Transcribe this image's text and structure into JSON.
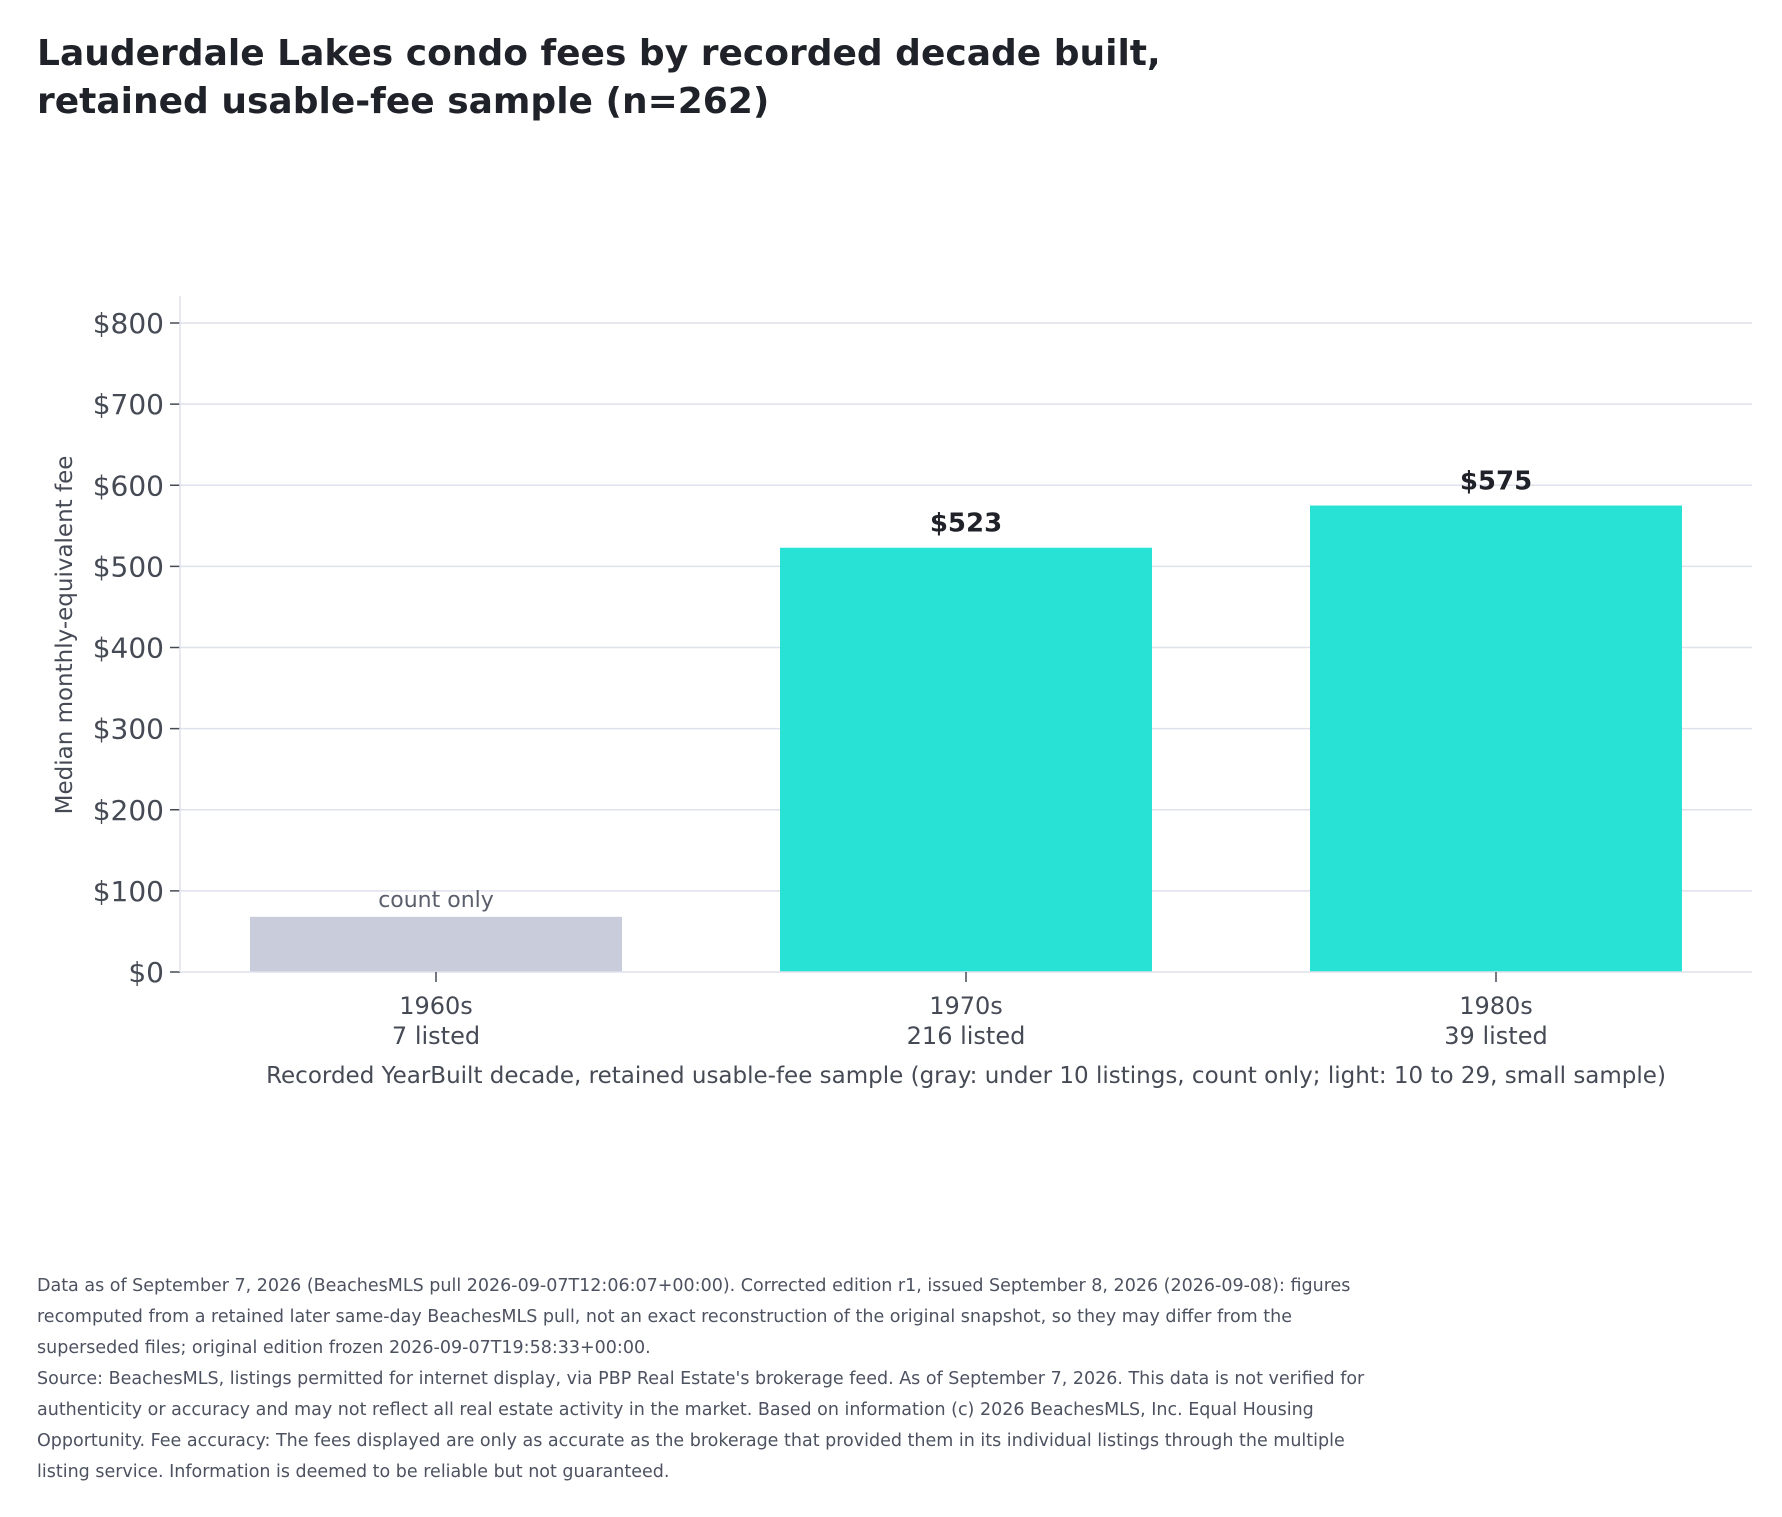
{
  "chart_data": {
    "type": "bar",
    "title": "Lauderdale Lakes condo fees by recorded decade built, retained usable-fee sample (n=262)",
    "ylabel": "Median monthly-equivalent fee",
    "xlabel": "Recorded YearBuilt decade, retained usable-fee sample (gray: under 10 listings, count only; light: 10 to 29, small sample)",
    "ylim": [
      0,
      800
    ],
    "yticks": [
      0,
      100,
      200,
      300,
      400,
      500,
      600,
      700,
      800
    ],
    "ytick_labels": [
      "$0",
      "$100",
      "$200",
      "$300",
      "$400",
      "$500",
      "$600",
      "$700",
      "$800"
    ],
    "grid": true,
    "categories": [
      "1960s",
      "1970s",
      "1980s"
    ],
    "category_counts": [
      "7 listed",
      "216 listed",
      "39 listed"
    ],
    "values": [
      68,
      523,
      575
    ],
    "data_labels": [
      "count only",
      "$523",
      "$575"
    ],
    "bar_colors": [
      "#c8ccdb",
      "#28e3d5",
      "#28e3d5"
    ]
  },
  "footnote": {
    "edition": "Data as of September 7, 2026 (BeachesMLS pull 2026-09-07T12:06:07+00:00). Corrected edition r1, issued September 8, 2026 (2026-09-08): figures recomputed from a retained later same-day BeachesMLS pull, not an exact reconstruction of the original snapshot, so they may differ from the superseded files; original edition frozen 2026-09-07T19:58:33+00:00.",
    "source": "Source: BeachesMLS, listings permitted for internet display, via PBP Real Estate's brokerage feed. As of September 7, 2026. This data is not verified for authenticity or accuracy and may not reflect all real estate activity in the market. Based on information (c) 2026 BeachesMLS, Inc. Equal Housing Opportunity. Fee accuracy: The fees displayed are only as accurate as the brokerage that provided them in its individual listings through the multiple listing service. Information is deemed to be reliable but not guaranteed."
  }
}
